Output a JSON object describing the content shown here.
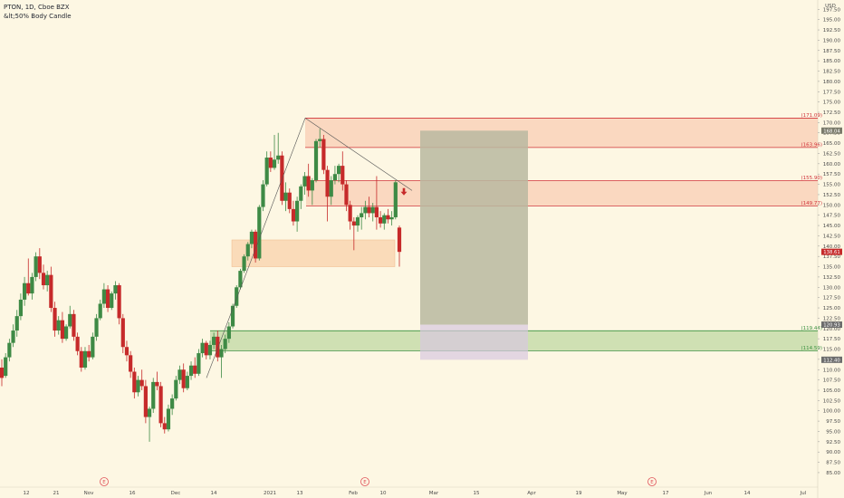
{
  "header": {
    "symbol_line": "PTON, 1D, Cboe BZX",
    "indicator_line": "&lt;50% Body Candle"
  },
  "colors": {
    "background": "#fdf7e3",
    "up_candle": "#3e8a45",
    "down_candle": "#c62a2a",
    "supply_fill": "#f8cbb0",
    "supply_border": "#d0333a",
    "demand_fill": "#c7dcaa",
    "demand_border": "#3b9140",
    "last_price_tag": "#c62a2a",
    "earnings_marker": "#e0535a",
    "projection_box": "#b8b8a0"
  },
  "chart_data": {
    "type": "candlestick",
    "symbol": "PTON",
    "timeframe": "1D",
    "exchange": "Cboe BZX",
    "currency": "USD",
    "y_axis_label": "USD",
    "ylim": [
      83.5,
      200
    ],
    "y_ticks": [
      "197.50",
      "195.00",
      "192.50",
      "190.00",
      "187.50",
      "185.00",
      "182.50",
      "180.00",
      "177.50",
      "175.00",
      "172.50",
      "170.00",
      "167.50",
      "165.00",
      "162.50",
      "160.00",
      "157.50",
      "155.00",
      "152.50",
      "150.00",
      "147.50",
      "145.00",
      "142.50",
      "140.00",
      "137.50",
      "135.00",
      "132.50",
      "130.00",
      "127.50",
      "125.00",
      "122.50",
      "120.00",
      "117.50",
      "115.00",
      "112.50",
      "110.00",
      "107.50",
      "105.00",
      "102.50",
      "100.00",
      "97.50",
      "95.00",
      "92.50",
      "90.00",
      "87.50",
      "85.00"
    ],
    "x_ticks": [
      "12",
      "21",
      "Nov",
      "16",
      "Dec",
      "14",
      "2021",
      "13",
      "Feb",
      "10",
      "Mar",
      "15",
      "Apr",
      "19",
      "May",
      "17",
      "Jun",
      "14",
      "Jul"
    ],
    "earnings_markers": [
      "E",
      "E",
      "E"
    ],
    "last_price": "138.61",
    "tag_top": "168.04",
    "tag_mid": "120.93",
    "tag_bottom": "112.40",
    "zones": [
      {
        "kind": "supply",
        "low": 163.96,
        "high": 171.09,
        "low_label": "(163.96)",
        "high_label": "(171.09)"
      },
      {
        "kind": "supply",
        "low": 149.77,
        "high": 155.9,
        "low_label": "(149.77)",
        "high_label": "(155.90)"
      },
      {
        "kind": "demand",
        "low": 114.59,
        "high": 119.44,
        "low_label": "(114.59)",
        "high_label": "(119.44)"
      }
    ],
    "highlight_box": {
      "low": 135.0,
      "high": 141.5
    },
    "projection": {
      "top": 168.04,
      "mid": 120.93,
      "bottom": 112.4
    },
    "candles": [
      {
        "o": 110.5,
        "h": 112.5,
        "l": 106.0,
        "c": 108.0
      },
      {
        "o": 108.5,
        "h": 114.0,
        "l": 108.0,
        "c": 113.0
      },
      {
        "o": 113.0,
        "h": 117.5,
        "l": 112.0,
        "c": 116.5
      },
      {
        "o": 116.5,
        "h": 121.0,
        "l": 115.5,
        "c": 119.5
      },
      {
        "o": 119.5,
        "h": 124.5,
        "l": 118.0,
        "c": 123.0
      },
      {
        "o": 123.0,
        "h": 128.5,
        "l": 122.0,
        "c": 127.0
      },
      {
        "o": 127.0,
        "h": 132.5,
        "l": 125.5,
        "c": 131.0
      },
      {
        "o": 131.0,
        "h": 137.0,
        "l": 128.0,
        "c": 128.5
      },
      {
        "o": 128.5,
        "h": 133.5,
        "l": 127.0,
        "c": 132.5
      },
      {
        "o": 132.5,
        "h": 138.5,
        "l": 131.5,
        "c": 137.5
      },
      {
        "o": 137.5,
        "h": 139.5,
        "l": 132.0,
        "c": 133.5
      },
      {
        "o": 133.5,
        "h": 135.5,
        "l": 129.5,
        "c": 130.5
      },
      {
        "o": 130.5,
        "h": 134.0,
        "l": 129.0,
        "c": 133.0
      },
      {
        "o": 133.0,
        "h": 135.0,
        "l": 124.0,
        "c": 125.0
      },
      {
        "o": 125.0,
        "h": 126.5,
        "l": 118.0,
        "c": 119.5
      },
      {
        "o": 119.5,
        "h": 123.0,
        "l": 118.5,
        "c": 122.0
      },
      {
        "o": 122.0,
        "h": 124.0,
        "l": 116.5,
        "c": 117.5
      },
      {
        "o": 117.5,
        "h": 121.0,
        "l": 117.0,
        "c": 120.5
      },
      {
        "o": 120.5,
        "h": 125.5,
        "l": 120.0,
        "c": 123.5
      },
      {
        "o": 123.5,
        "h": 124.5,
        "l": 117.0,
        "c": 118.0
      },
      {
        "o": 118.0,
        "h": 119.0,
        "l": 113.5,
        "c": 114.5
      },
      {
        "o": 114.5,
        "h": 115.5,
        "l": 109.5,
        "c": 110.5
      },
      {
        "o": 110.5,
        "h": 115.5,
        "l": 110.0,
        "c": 114.5
      },
      {
        "o": 114.5,
        "h": 116.0,
        "l": 112.0,
        "c": 113.0
      },
      {
        "o": 113.0,
        "h": 119.0,
        "l": 112.5,
        "c": 118.0
      },
      {
        "o": 118.0,
        "h": 123.5,
        "l": 117.0,
        "c": 122.5
      },
      {
        "o": 122.5,
        "h": 127.0,
        "l": 122.0,
        "c": 126.0
      },
      {
        "o": 126.0,
        "h": 131.0,
        "l": 125.0,
        "c": 129.5
      },
      {
        "o": 129.5,
        "h": 130.5,
        "l": 124.0,
        "c": 125.0
      },
      {
        "o": 125.0,
        "h": 129.0,
        "l": 124.5,
        "c": 128.5
      },
      {
        "o": 128.5,
        "h": 131.5,
        "l": 127.0,
        "c": 130.5
      },
      {
        "o": 130.5,
        "h": 131.0,
        "l": 121.0,
        "c": 122.5
      },
      {
        "o": 122.5,
        "h": 123.5,
        "l": 114.0,
        "c": 115.5
      },
      {
        "o": 115.5,
        "h": 117.0,
        "l": 112.0,
        "c": 113.5
      },
      {
        "o": 113.5,
        "h": 114.5,
        "l": 108.0,
        "c": 109.5
      },
      {
        "o": 109.5,
        "h": 110.5,
        "l": 103.0,
        "c": 104.5
      },
      {
        "o": 104.5,
        "h": 108.5,
        "l": 103.5,
        "c": 107.5
      },
      {
        "o": 107.5,
        "h": 110.0,
        "l": 105.0,
        "c": 106.0
      },
      {
        "o": 106.0,
        "h": 107.5,
        "l": 97.0,
        "c": 98.5
      },
      {
        "o": 98.5,
        "h": 101.0,
        "l": 92.5,
        "c": 100.5
      },
      {
        "o": 100.5,
        "h": 108.0,
        "l": 99.5,
        "c": 107.0
      },
      {
        "o": 107.0,
        "h": 109.5,
        "l": 105.0,
        "c": 106.0
      },
      {
        "o": 106.0,
        "h": 107.0,
        "l": 96.0,
        "c": 97.0
      },
      {
        "o": 97.0,
        "h": 98.5,
        "l": 94.5,
        "c": 95.5
      },
      {
        "o": 95.5,
        "h": 101.5,
        "l": 95.0,
        "c": 100.5
      },
      {
        "o": 100.5,
        "h": 104.0,
        "l": 99.0,
        "c": 103.0
      },
      {
        "o": 103.0,
        "h": 108.5,
        "l": 102.5,
        "c": 107.5
      },
      {
        "o": 107.5,
        "h": 111.0,
        "l": 106.5,
        "c": 110.0
      },
      {
        "o": 110.0,
        "h": 111.5,
        "l": 104.5,
        "c": 105.5
      },
      {
        "o": 105.5,
        "h": 109.5,
        "l": 105.0,
        "c": 108.5
      },
      {
        "o": 108.5,
        "h": 112.0,
        "l": 107.5,
        "c": 111.0
      },
      {
        "o": 111.0,
        "h": 113.0,
        "l": 108.0,
        "c": 109.0
      },
      {
        "o": 109.0,
        "h": 115.0,
        "l": 108.5,
        "c": 114.0
      },
      {
        "o": 114.0,
        "h": 117.5,
        "l": 113.0,
        "c": 116.5
      },
      {
        "o": 116.5,
        "h": 117.0,
        "l": 112.5,
        "c": 113.5
      },
      {
        "o": 113.5,
        "h": 117.0,
        "l": 112.5,
        "c": 116.0
      },
      {
        "o": 116.0,
        "h": 119.0,
        "l": 115.0,
        "c": 118.0
      },
      {
        "o": 118.0,
        "h": 119.5,
        "l": 112.0,
        "c": 113.0
      },
      {
        "o": 113.0,
        "h": 116.0,
        "l": 108.0,
        "c": 115.0
      },
      {
        "o": 115.0,
        "h": 118.5,
        "l": 114.0,
        "c": 117.5
      },
      {
        "o": 117.5,
        "h": 121.5,
        "l": 116.5,
        "c": 120.5
      },
      {
        "o": 120.5,
        "h": 126.0,
        "l": 120.0,
        "c": 125.5
      },
      {
        "o": 125.5,
        "h": 130.5,
        "l": 125.0,
        "c": 130.0
      },
      {
        "o": 130.0,
        "h": 134.5,
        "l": 129.5,
        "c": 134.0
      },
      {
        "o": 134.0,
        "h": 138.0,
        "l": 133.5,
        "c": 137.5
      },
      {
        "o": 137.5,
        "h": 141.0,
        "l": 136.5,
        "c": 140.5
      },
      {
        "o": 140.5,
        "h": 144.0,
        "l": 139.5,
        "c": 143.5
      },
      {
        "o": 143.5,
        "h": 144.0,
        "l": 136.0,
        "c": 137.0
      },
      {
        "o": 137.0,
        "h": 150.0,
        "l": 136.5,
        "c": 149.5
      },
      {
        "o": 149.5,
        "h": 156.0,
        "l": 148.5,
        "c": 155.0
      },
      {
        "o": 155.0,
        "h": 163.0,
        "l": 154.5,
        "c": 161.5
      },
      {
        "o": 161.5,
        "h": 163.0,
        "l": 158.0,
        "c": 159.0
      },
      {
        "o": 159.0,
        "h": 167.0,
        "l": 158.5,
        "c": 161.0
      },
      {
        "o": 161.0,
        "h": 167.5,
        "l": 160.0,
        "c": 162.0
      },
      {
        "o": 162.0,
        "h": 163.0,
        "l": 150.0,
        "c": 151.0
      },
      {
        "o": 151.0,
        "h": 155.5,
        "l": 148.5,
        "c": 153.0
      },
      {
        "o": 153.0,
        "h": 154.0,
        "l": 148.0,
        "c": 149.0
      },
      {
        "o": 149.0,
        "h": 151.0,
        "l": 145.0,
        "c": 146.0
      },
      {
        "o": 146.0,
        "h": 152.0,
        "l": 143.5,
        "c": 151.0
      },
      {
        "o": 151.0,
        "h": 155.0,
        "l": 149.0,
        "c": 154.5
      },
      {
        "o": 154.5,
        "h": 158.0,
        "l": 152.5,
        "c": 157.0
      },
      {
        "o": 157.0,
        "h": 160.0,
        "l": 152.0,
        "c": 153.5
      },
      {
        "o": 153.5,
        "h": 156.5,
        "l": 150.0,
        "c": 156.0
      },
      {
        "o": 156.0,
        "h": 166.0,
        "l": 155.5,
        "c": 165.5
      },
      {
        "o": 165.5,
        "h": 168.5,
        "l": 164.0,
        "c": 166.0
      },
      {
        "o": 166.0,
        "h": 167.0,
        "l": 157.5,
        "c": 158.5
      },
      {
        "o": 158.5,
        "h": 159.5,
        "l": 146.0,
        "c": 152.0
      },
      {
        "o": 152.0,
        "h": 157.0,
        "l": 150.0,
        "c": 156.0
      },
      {
        "o": 156.0,
        "h": 159.5,
        "l": 155.0,
        "c": 157.5
      },
      {
        "o": 157.5,
        "h": 160.0,
        "l": 155.5,
        "c": 159.5
      },
      {
        "o": 159.5,
        "h": 163.0,
        "l": 153.5,
        "c": 155.0
      },
      {
        "o": 155.0,
        "h": 156.0,
        "l": 148.5,
        "c": 150.0
      },
      {
        "o": 150.0,
        "h": 151.0,
        "l": 144.0,
        "c": 146.0
      },
      {
        "o": 146.0,
        "h": 147.0,
        "l": 139.0,
        "c": 145.0
      },
      {
        "o": 145.0,
        "h": 147.5,
        "l": 143.5,
        "c": 147.0
      },
      {
        "o": 147.0,
        "h": 149.5,
        "l": 144.0,
        "c": 148.0
      },
      {
        "o": 148.0,
        "h": 151.0,
        "l": 146.5,
        "c": 149.5
      },
      {
        "o": 149.5,
        "h": 152.0,
        "l": 147.0,
        "c": 148.0
      },
      {
        "o": 148.0,
        "h": 150.5,
        "l": 146.0,
        "c": 149.5
      },
      {
        "o": 149.5,
        "h": 157.0,
        "l": 144.0,
        "c": 147.0
      },
      {
        "o": 147.0,
        "h": 148.5,
        "l": 144.5,
        "c": 145.5
      },
      {
        "o": 145.5,
        "h": 148.0,
        "l": 144.0,
        "c": 147.5
      },
      {
        "o": 147.5,
        "h": 149.0,
        "l": 145.5,
        "c": 146.5
      },
      {
        "o": 146.5,
        "h": 148.5,
        "l": 145.0,
        "c": 147.0
      },
      {
        "o": 147.0,
        "h": 156.0,
        "l": 146.5,
        "c": 155.5
      },
      {
        "o": 144.5,
        "h": 145.0,
        "l": 135.0,
        "c": 138.6
      }
    ]
  }
}
